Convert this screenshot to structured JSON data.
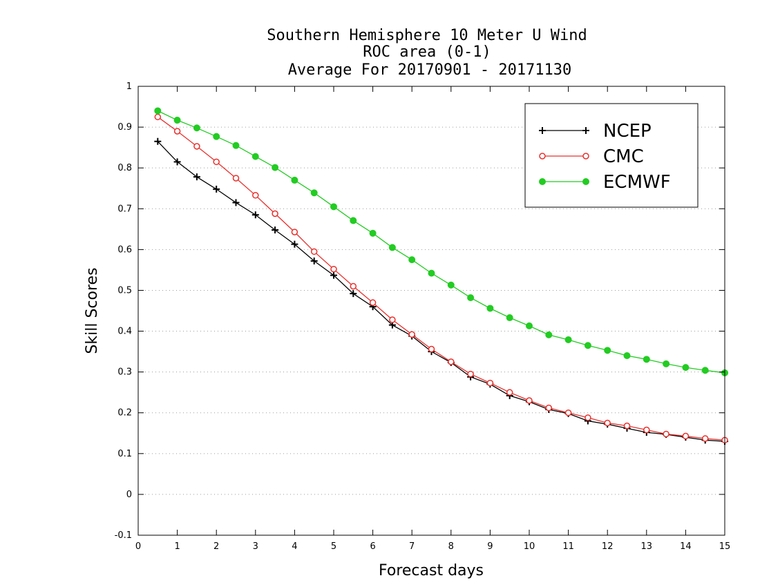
{
  "chart_data": {
    "type": "line",
    "title_lines": [
      "Southern Hemisphere 10 Meter U Wind",
      "ROC area (0-1)",
      "Average For 20170901 - 20171130"
    ],
    "xlabel": "Forecast days",
    "ylabel": "Skill Scores",
    "xlim": [
      0,
      15
    ],
    "ylim": [
      -0.1,
      1
    ],
    "xticks": [
      0,
      1,
      2,
      3,
      4,
      5,
      6,
      7,
      8,
      9,
      10,
      11,
      12,
      13,
      14,
      15
    ],
    "yticks": [
      -0.1,
      0,
      0.1,
      0.2,
      0.3,
      0.4,
      0.5,
      0.6,
      0.7,
      0.8,
      0.9,
      1
    ],
    "ytick_labels": [
      "-0.1",
      "0",
      "0.1",
      "0.2",
      "0.3",
      "0.4",
      "0.5",
      "0.6",
      "0.7",
      "0.8",
      "0.9",
      "1"
    ],
    "grid": "horizontal dotted",
    "legend_position": "top-right",
    "x": [
      0.5,
      1.0,
      1.5,
      2.0,
      2.5,
      3.0,
      3.5,
      4.0,
      4.5,
      5.0,
      5.5,
      6.0,
      6.5,
      7.0,
      7.5,
      8.0,
      8.5,
      9.0,
      9.5,
      10.0,
      10.5,
      11.0,
      11.5,
      12.0,
      12.5,
      13.0,
      13.5,
      14.0,
      14.5,
      15.0
    ],
    "series": [
      {
        "name": "NCEP",
        "color": "#000000",
        "marker": "plus",
        "values": [
          0.865,
          0.815,
          0.778,
          0.748,
          0.715,
          0.685,
          0.648,
          0.613,
          0.572,
          0.537,
          0.492,
          0.46,
          0.415,
          0.388,
          0.35,
          0.323,
          0.288,
          0.27,
          0.242,
          0.227,
          0.208,
          0.198,
          0.18,
          0.172,
          0.162,
          0.152,
          0.147,
          0.14,
          0.133,
          0.13
        ]
      },
      {
        "name": "CMC",
        "color": "#e8302c",
        "marker": "open-circle",
        "values": [
          0.925,
          0.89,
          0.853,
          0.815,
          0.775,
          0.733,
          0.688,
          0.643,
          0.595,
          0.552,
          0.51,
          0.47,
          0.428,
          0.392,
          0.356,
          0.325,
          0.295,
          0.273,
          0.25,
          0.23,
          0.212,
          0.2,
          0.188,
          0.175,
          0.168,
          0.158,
          0.148,
          0.143,
          0.137,
          0.133
        ]
      },
      {
        "name": "ECMWF",
        "color": "#22cc22",
        "marker": "filled-circle",
        "values": [
          0.94,
          0.917,
          0.898,
          0.877,
          0.855,
          0.828,
          0.801,
          0.77,
          0.739,
          0.705,
          0.671,
          0.64,
          0.605,
          0.575,
          0.542,
          0.513,
          0.482,
          0.456,
          0.433,
          0.413,
          0.391,
          0.379,
          0.365,
          0.353,
          0.34,
          0.331,
          0.32,
          0.311,
          0.304,
          0.298
        ]
      }
    ]
  }
}
